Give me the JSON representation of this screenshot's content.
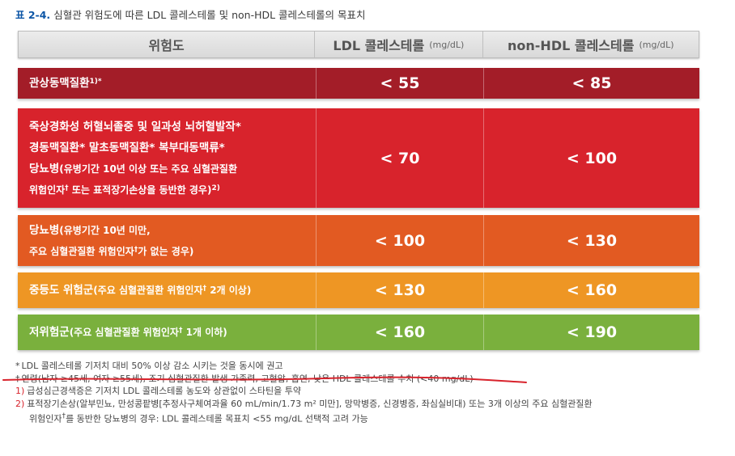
{
  "caption": {
    "label": "표 2-4.",
    "title": "심혈관 위험도에 따른 LDL 콜레스테롤 및 non-HDL 콜레스테롤의 목표치"
  },
  "header": {
    "risk": "위험도",
    "ldl": "LDL 콜레스테롤",
    "ldl_unit": "(mg/dL)",
    "nonhdl": "non-HDL 콜레스테롤",
    "nonhdl_unit": "(mg/dL)"
  },
  "rows": [
    {
      "main": "관상동맥질환",
      "sup": "1)*",
      "ldl": "< 55",
      "nonhdl": "< 85",
      "color": "#a31d28"
    },
    {
      "line1": "죽상경화성 허혈뇌졸중 및 일과성 뇌허혈발작*",
      "line2": "경동맥질환*  말초동맥질환*  복부대동맥류*",
      "line3_main": "당뇨병",
      "line3_rest": "(유병기간 10년 이상 또는 주요 심혈관질환",
      "line4_a": "위험인자",
      "line4_sup": "†",
      "line4_b": " 또는 표적장기손상을 동반한 경우)",
      "line4_sup2": "2)",
      "ldl": "< 70",
      "nonhdl": "< 100",
      "color": "#d8232c"
    },
    {
      "line1_main": "당뇨병",
      "line1_rest": "(유병기간 10년 미만,",
      "line2_a": "주요 심혈관질환 위험인자",
      "line2_sup": "†",
      "line2_b": "가 없는 경우)",
      "ldl": "< 100",
      "nonhdl": "< 130",
      "color": "#e25a22"
    },
    {
      "main": "중등도 위험군",
      "rest_a": "(주요 심혈관질환 위험인자",
      "sup": "†",
      "rest_b": " 2개 이상)",
      "ldl": "< 130",
      "nonhdl": "< 160",
      "color": "#ee9624"
    },
    {
      "main": "저위험군",
      "rest_a": "(주요 심혈관질환 위험인자",
      "sup": "†",
      "rest_b": " 1개 이하)",
      "ldl": "< 160",
      "nonhdl": "< 190",
      "color": "#7ab03d"
    }
  ],
  "notes": {
    "n1_mark": "*",
    "n1": "LDL 콜레스테롤 기저치 대비 50% 이상 감소 시키는 것을 동시에 권고",
    "n2_mark": "†",
    "n2": "연령(남자 ≥45세, 여자 ≥55세), 조기 심혈관질환 발생 가족력, 고혈압, 흡연, 낮은 HDL 콜레스테롤 수치 (<40 mg/dL)",
    "n3_mark": "1)",
    "n3": "급성심근경색증은 기저치 LDL 콜레스테롤 농도와 상관없이 스타틴을 투약",
    "n4_mark": "2)",
    "n4": "표적장기손상(알부민뇨, 만성콩팥병[추정사구체여과율 60 mL/min/1.73 m² 미만], 망막병증, 신경병증, 좌심실비대) 또는 3개 이상의 주요 심혈관질환",
    "n4b_a": "위험인자",
    "n4b_sup": "†",
    "n4b_b": "를 동반한 당뇨병의 경우: LDL 콜레스테롤 목표치 <55 mg/dL 선택적 고려 가능"
  },
  "annotation_color": "#d8232c"
}
